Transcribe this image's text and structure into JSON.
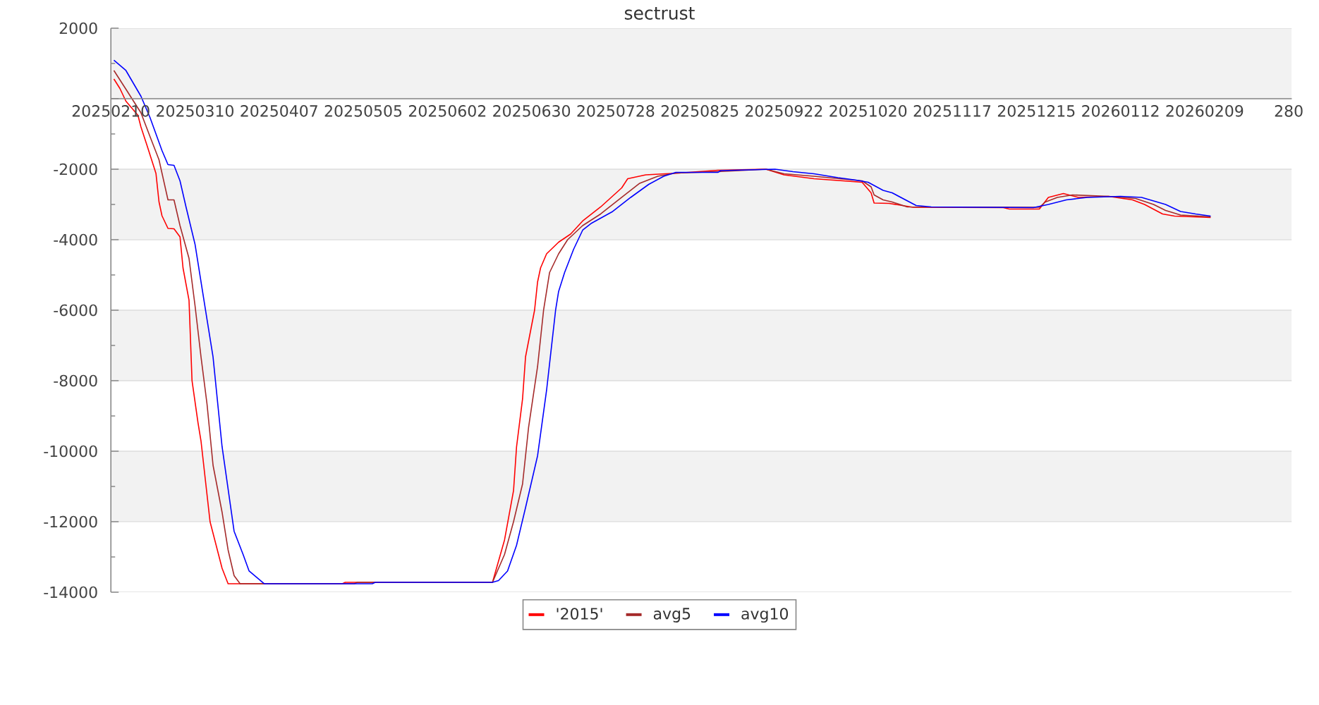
{
  "chart_data": {
    "type": "line",
    "title": "sectrust",
    "xlim": [
      "2025-02-10",
      "2026-03-10"
    ],
    "xticks": [
      {
        "value": "2025-02-10",
        "label": "20250210"
      },
      {
        "value": "2025-03-10",
        "label": "20250310"
      },
      {
        "value": "2025-04-07",
        "label": "20250407"
      },
      {
        "value": "2025-05-05",
        "label": "20250505"
      },
      {
        "value": "2025-06-02",
        "label": "20250602"
      },
      {
        "value": "2025-06-30",
        "label": "20250630"
      },
      {
        "value": "2025-07-28",
        "label": "20250728"
      },
      {
        "value": "2025-08-25",
        "label": "20250825"
      },
      {
        "value": "2025-09-22",
        "label": "20250922"
      },
      {
        "value": "2025-10-20",
        "label": "20251020"
      },
      {
        "value": "2025-11-17",
        "label": "20251117"
      },
      {
        "value": "2025-12-15",
        "label": "20251215"
      },
      {
        "value": "2026-01-12",
        "label": "20260112"
      },
      {
        "value": "2026-02-09",
        "label": "20260209"
      },
      {
        "value": "2026-03-09",
        "label": "280"
      }
    ],
    "ylim": [
      -14000,
      2000
    ],
    "yticks": [
      -14000,
      -12000,
      -10000,
      -8000,
      -6000,
      -4000,
      -2000,
      {
        "value": 0,
        "label": null
      },
      2000
    ],
    "grid": "y",
    "legend": "bottom",
    "bands": [
      {
        "axis": "y",
        "from": 0,
        "to": 2000,
        "color": "#f2f2f2"
      },
      {
        "axis": "y",
        "from": -4000,
        "to": -2000,
        "color": "#f2f2f2"
      },
      {
        "axis": "y",
        "from": -8000,
        "to": -6000,
        "color": "#f2f2f2"
      },
      {
        "axis": "y",
        "from": -12000,
        "to": -10000,
        "color": "#f2f2f2"
      }
    ],
    "series": [
      {
        "name": "'2015'",
        "color": "#ff0000",
        "x": [
          "2025-02-11",
          "2025-02-13",
          "2025-02-15",
          "2025-02-19",
          "2025-02-20",
          "2025-02-22",
          "2025-02-25",
          "2025-02-26",
          "2025-02-27",
          "2025-03-01",
          "2025-03-03",
          "2025-03-05",
          "2025-03-06",
          "2025-03-08",
          "2025-03-09",
          "2025-03-11",
          "2025-03-12",
          "2025-03-15",
          "2025-03-19",
          "2025-03-21",
          "2025-04-28",
          "2025-04-29",
          "2025-06-17",
          "2025-06-21",
          "2025-06-24",
          "2025-06-25",
          "2025-06-27",
          "2025-06-28",
          "2025-07-01",
          "2025-07-02",
          "2025-07-03",
          "2025-07-05",
          "2025-07-09",
          "2025-07-13",
          "2025-07-17",
          "2025-07-23",
          "2025-07-30",
          "2025-08-01",
          "2025-08-07",
          "2025-08-18",
          "2025-08-31",
          "2025-09-16",
          "2025-09-22",
          "2025-10-02",
          "2025-10-18",
          "2025-10-21",
          "2025-10-22",
          "2025-10-27",
          "2025-11-04",
          "2025-12-04",
          "2025-12-06",
          "2025-12-16",
          "2025-12-19",
          "2025-12-24",
          "2025-12-29",
          "2026-01-08",
          "2026-01-16",
          "2026-01-20",
          "2026-01-26",
          "2026-01-30",
          "2026-02-11"
        ],
        "values": [
          560,
          290,
          -70,
          -470,
          -800,
          -1320,
          -2120,
          -2920,
          -3320,
          -3680,
          -3690,
          -3920,
          -4800,
          -5720,
          -8000,
          -9200,
          -9720,
          -12000,
          -13320,
          -13760,
          -13760,
          -13720,
          -13720,
          -12520,
          -11120,
          -9880,
          -8520,
          -7320,
          -6000,
          -5200,
          -4800,
          -4400,
          -4070,
          -3840,
          -3470,
          -3070,
          -2530,
          -2270,
          -2160,
          -2110,
          -2030,
          -2000,
          -2160,
          -2270,
          -2370,
          -2670,
          -2960,
          -2970,
          -3080,
          -3090,
          -3130,
          -3130,
          -2800,
          -2690,
          -2800,
          -2770,
          -2870,
          -3000,
          -3270,
          -3330,
          -3370
        ]
      },
      {
        "name": "avg5",
        "color": "#a52a2a",
        "x": [
          "2025-02-11",
          "2025-02-15",
          "2025-02-20",
          "2025-02-23",
          "2025-02-26",
          "2025-03-01",
          "2025-03-03",
          "2025-03-05",
          "2025-03-08",
          "2025-03-10",
          "2025-03-12",
          "2025-03-14",
          "2025-03-16",
          "2025-03-19",
          "2025-03-21",
          "2025-03-23",
          "2025-03-25",
          "2025-05-02",
          "2025-05-03",
          "2025-06-17",
          "2025-06-21",
          "2025-06-24",
          "2025-06-27",
          "2025-06-29",
          "2025-07-02",
          "2025-07-04",
          "2025-07-06",
          "2025-07-09",
          "2025-07-12",
          "2025-07-17",
          "2025-07-23",
          "2025-07-30",
          "2025-08-05",
          "2025-08-11",
          "2025-08-17",
          "2025-08-31",
          "2025-09-16",
          "2025-09-22",
          "2025-10-02",
          "2025-10-18",
          "2025-10-21",
          "2025-10-22",
          "2025-10-25",
          "2025-10-28",
          "2025-11-02",
          "2025-12-16",
          "2025-12-18",
          "2025-12-22",
          "2025-12-27",
          "2026-01-08",
          "2026-01-17",
          "2026-01-23",
          "2026-01-27",
          "2026-02-01",
          "2026-02-11"
        ],
        "values": [
          800,
          270,
          -400,
          -1070,
          -1730,
          -2870,
          -2870,
          -3600,
          -4530,
          -5870,
          -7330,
          -8670,
          -10400,
          -11730,
          -12800,
          -13530,
          -13760,
          -13760,
          -13720,
          -13720,
          -12930,
          -12000,
          -10930,
          -9330,
          -7600,
          -6000,
          -4930,
          -4400,
          -4000,
          -3600,
          -3270,
          -2800,
          -2400,
          -2200,
          -2110,
          -2070,
          -2000,
          -2130,
          -2200,
          -2330,
          -2500,
          -2730,
          -2870,
          -2930,
          -3070,
          -3080,
          -2930,
          -2800,
          -2730,
          -2770,
          -2830,
          -3000,
          -3170,
          -3300,
          -3350
        ]
      },
      {
        "name": "avg10",
        "color": "#0000ff",
        "x": [
          "2025-02-11",
          "2025-02-15",
          "2025-02-20",
          "2025-02-23",
          "2025-02-27",
          "2025-03-01",
          "2025-03-03",
          "2025-03-05",
          "2025-03-07",
          "2025-03-10",
          "2025-03-14",
          "2025-03-16",
          "2025-03-19",
          "2025-03-23",
          "2025-03-26",
          "2025-03-28",
          "2025-04-02",
          "2025-05-08",
          "2025-05-09",
          "2025-06-17",
          "2025-06-19",
          "2025-06-22",
          "2025-06-25",
          "2025-06-28",
          "2025-07-02",
          "2025-07-05",
          "2025-07-08",
          "2025-07-09",
          "2025-07-11",
          "2025-07-14",
          "2025-07-17",
          "2025-07-20",
          "2025-07-27",
          "2025-08-02",
          "2025-08-08",
          "2025-08-13",
          "2025-08-17",
          "2025-08-31",
          "2025-09-01",
          "2025-09-19",
          "2025-09-25",
          "2025-10-02",
          "2025-10-10",
          "2025-10-16",
          "2025-10-20",
          "2025-10-25",
          "2025-10-28",
          "2025-11-05",
          "2025-11-10",
          "2025-12-14",
          "2025-12-19",
          "2025-12-25",
          "2026-01-01",
          "2026-01-12",
          "2026-01-19",
          "2026-01-27",
          "2026-02-01",
          "2026-02-06",
          "2026-02-11"
        ],
        "values": [
          1090,
          800,
          70,
          -530,
          -1470,
          -1870,
          -1890,
          -2330,
          -3070,
          -4130,
          -6270,
          -7330,
          -9870,
          -12270,
          -12930,
          -13400,
          -13760,
          -13760,
          -13720,
          -13720,
          -13670,
          -13400,
          -12670,
          -11600,
          -10130,
          -8270,
          -6000,
          -5470,
          -4930,
          -4270,
          -3730,
          -3530,
          -3200,
          -2800,
          -2430,
          -2200,
          -2090,
          -2090,
          -2040,
          -2000,
          -2070,
          -2130,
          -2240,
          -2310,
          -2370,
          -2600,
          -2670,
          -3030,
          -3070,
          -3090,
          -3000,
          -2870,
          -2800,
          -2770,
          -2800,
          -3000,
          -3200,
          -3270,
          -3330
        ]
      }
    ]
  }
}
